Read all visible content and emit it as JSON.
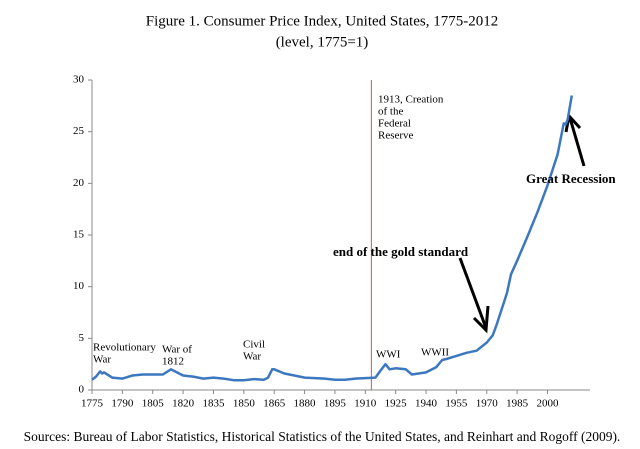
{
  "chart_data": {
    "type": "line",
    "title": "Figure 1. Consumer Price Index, United States, 1775-2012",
    "subtitle": "(level, 1775=1)",
    "source": "Sources: Bureau of Labor Statistics, Historical Statistics of the United States, and Reinhart and Rogoff (2009).",
    "x": [
      1775,
      1777,
      1779,
      1780,
      1781,
      1785,
      1790,
      1795,
      1800,
      1805,
      1810,
      1814,
      1815,
      1820,
      1825,
      1830,
      1835,
      1840,
      1845,
      1850,
      1855,
      1860,
      1862,
      1864,
      1865,
      1870,
      1875,
      1880,
      1885,
      1890,
      1895,
      1900,
      1905,
      1910,
      1915,
      1918,
      1920,
      1922,
      1925,
      1930,
      1933,
      1940,
      1945,
      1948,
      1950,
      1955,
      1960,
      1965,
      1970,
      1973,
      1975,
      1980,
      1982,
      1985,
      1990,
      1995,
      2000,
      2005,
      2008,
      2009,
      2010,
      2012
    ],
    "series": [
      {
        "color": "#3c78c0",
        "values": [
          1,
          1.3,
          1.8,
          1.6,
          1.7,
          1.2,
          1.1,
          1.4,
          1.5,
          1.5,
          1.5,
          2.0,
          1.9,
          1.4,
          1.3,
          1.1,
          1.2,
          1.1,
          0.95,
          0.95,
          1.05,
          1.0,
          1.2,
          2.0,
          2.0,
          1.6,
          1.4,
          1.2,
          1.15,
          1.1,
          1.0,
          1.0,
          1.1,
          1.15,
          1.2,
          2.0,
          2.5,
          2.0,
          2.1,
          2.0,
          1.5,
          1.7,
          2.2,
          2.9,
          3.0,
          3.3,
          3.6,
          3.8,
          4.6,
          5.3,
          6.4,
          9.4,
          11.2,
          12.5,
          14.8,
          17.2,
          19.8,
          22.8,
          25.8,
          25.7,
          26.2,
          28.5
        ]
      }
    ],
    "vline": {
      "x": 1913,
      "color": "#d9534f"
    },
    "annotations": [
      {
        "lines": [
          "Revolutionary",
          "War"
        ]
      },
      {
        "lines": [
          "War of",
          "1812"
        ]
      },
      {
        "lines": [
          "Civil",
          "War"
        ]
      },
      {
        "lines": [
          "1913, Creation",
          "of the",
          "Federal",
          "Reserve"
        ]
      },
      {
        "lines": [
          "WWI"
        ]
      },
      {
        "lines": [
          "WWII"
        ]
      },
      {
        "lines": [
          "end of the gold standard"
        ]
      },
      {
        "lines": [
          "Great Recession"
        ]
      }
    ],
    "xlim": [
      1775,
      2021
    ],
    "ylim": [
      0,
      30
    ],
    "xticks": [
      1775,
      1790,
      1805,
      1820,
      1835,
      1850,
      1865,
      1880,
      1895,
      1910,
      1925,
      1940,
      1955,
      1970,
      1985,
      2000
    ],
    "yticks": [
      0,
      5,
      10,
      15,
      20,
      25,
      30
    ]
  }
}
